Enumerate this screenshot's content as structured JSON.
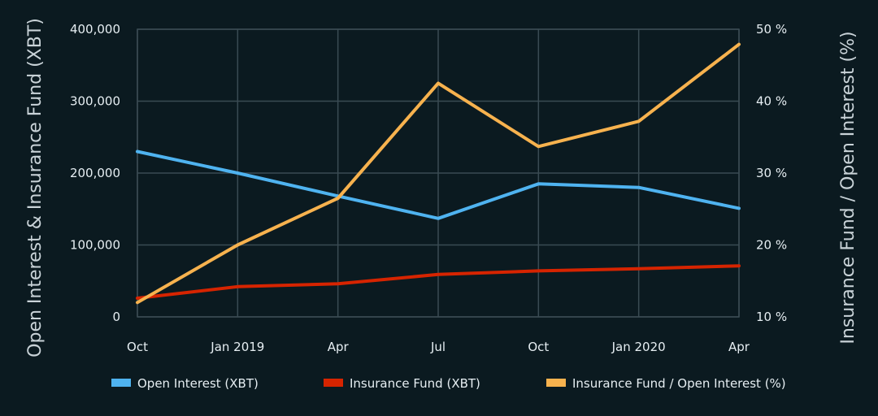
{
  "chart_data": {
    "type": "line",
    "title": "",
    "categories": [
      "Oct",
      "Jan 2019",
      "Apr",
      "Jul",
      "Oct",
      "Jan 2020",
      "Apr"
    ],
    "y_left": {
      "label": "Open Interest & Insurance Fund (XBT)",
      "range": [
        0,
        400000
      ],
      "ticks": [
        "0",
        "100,000",
        "200,000",
        "300,000",
        "400,000"
      ]
    },
    "y_right": {
      "label": "Insurance Fund / Open Interest (%)",
      "range": [
        10,
        50
      ],
      "ticks": [
        "10 %",
        "20 %",
        "30 %",
        "40 %",
        "50 %"
      ]
    },
    "grid": true,
    "legend_position": "bottom",
    "series": [
      {
        "name": "Open Interest (XBT)",
        "axis": "left",
        "color": "#4fb3f0",
        "values": [
          230000,
          200000,
          168000,
          137000,
          185000,
          180000,
          151000
        ]
      },
      {
        "name": "Insurance Fund (XBT)",
        "axis": "left",
        "color": "#d62400",
        "values": [
          26000,
          42000,
          46000,
          59000,
          64000,
          67000,
          71000
        ]
      },
      {
        "name": "Insurance Fund / Open Interest (%)",
        "axis": "right",
        "color": "#f7b24e",
        "values": [
          12,
          20,
          26.5,
          42.5,
          33.7,
          37.2,
          47.9
        ]
      }
    ]
  }
}
